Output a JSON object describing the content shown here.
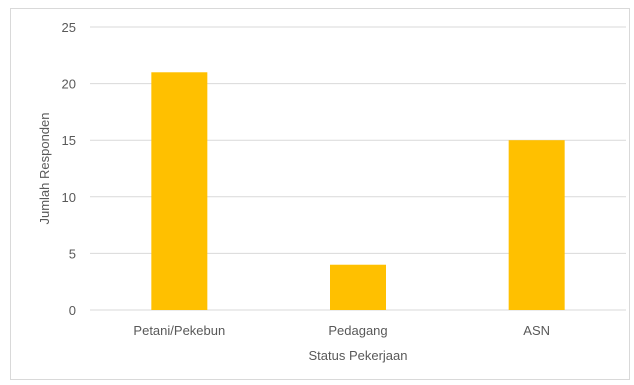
{
  "chart_data": {
    "type": "bar",
    "categories": [
      "Petani/Pekebun",
      "Pedagang",
      "ASN"
    ],
    "values": [
      21,
      4,
      15
    ],
    "xlabel": "Status Pekerjaan",
    "ylabel": "Jumlah Responden",
    "ylim": [
      0,
      25
    ],
    "yticks": [
      "0",
      "5",
      "10",
      "15",
      "20",
      "25"
    ],
    "grid": true,
    "legend": "none",
    "bar_color": "#ffc000",
    "gridline_color": "#d9d9d9",
    "text_color": "#595959"
  }
}
